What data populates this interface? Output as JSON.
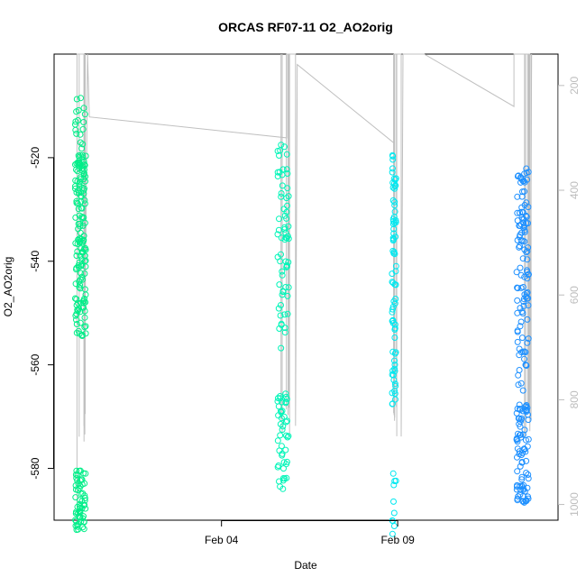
{
  "chart_data": {
    "type": "scatter",
    "title": "ORCAS RF07-11 O2_AO2orig",
    "xlabel": "Date",
    "ylabel": "O2_AO2orig",
    "x_ticks": [
      "Feb 04",
      "Feb 09"
    ],
    "y_ticks": [
      -520,
      -540,
      -560,
      -580
    ],
    "y_right_ticks": [
      200,
      400,
      600,
      800,
      1000
    ],
    "ylim": [
      -590,
      -500
    ],
    "y_right_lim": [
      1030,
      140
    ],
    "xlim_days": [
      0,
      14.3
    ],
    "tick_days": {
      "Feb 04": 4.75,
      "Feb 09": 9.75
    },
    "colors": {
      "f1": "#00ee88",
      "f2": "#00f5b8",
      "f3": "#00e8f0",
      "f4": "#1e90ff",
      "line": "#c0c0c0"
    },
    "flights": [
      {
        "center": 0.75,
        "width": 0.3,
        "color_key": "f1",
        "clusters": [
          [
            -517,
            -530,
            60
          ],
          [
            -531,
            -555,
            90
          ],
          [
            -580,
            -592,
            60
          ],
          [
            -508,
            -520,
            15
          ]
        ]
      },
      {
        "center": 6.5,
        "width": 0.32,
        "color_key": "f2",
        "clusters": [
          [
            -516,
            -533,
            25
          ],
          [
            -533,
            -557,
            40
          ],
          [
            -565,
            -584,
            45
          ]
        ]
      },
      {
        "center": 9.65,
        "width": 0.12,
        "color_key": "f3",
        "clusters": [
          [
            -518,
            -533,
            25
          ],
          [
            -533,
            -568,
            50
          ],
          [
            -577,
            -593,
            10
          ]
        ]
      },
      {
        "center": 13.3,
        "width": 0.35,
        "color_key": "f4",
        "clusters": [
          [
            -522,
            -548,
            80
          ],
          [
            -548,
            -565,
            30
          ],
          [
            -567,
            -587,
            80
          ]
        ]
      }
    ],
    "alt_line": [
      [
        0.65,
        1030
      ],
      [
        0.65,
        140
      ],
      [
        0.85,
        140
      ],
      [
        0.85,
        850
      ],
      [
        0.95,
        140
      ],
      [
        1.0,
        260
      ],
      [
        6.6,
        300
      ],
      [
        6.6,
        140
      ],
      [
        6.85,
        140
      ],
      [
        6.85,
        850
      ],
      [
        6.9,
        160
      ],
      [
        9.65,
        310
      ],
      [
        9.65,
        140
      ],
      [
        9.85,
        140
      ],
      [
        9.85,
        870
      ],
      [
        9.9,
        140
      ],
      [
        10.5,
        140
      ],
      [
        13.05,
        240
      ],
      [
        13.05,
        140
      ],
      [
        13.5,
        140
      ],
      [
        13.5,
        860
      ],
      [
        13.55,
        140
      ]
    ]
  }
}
